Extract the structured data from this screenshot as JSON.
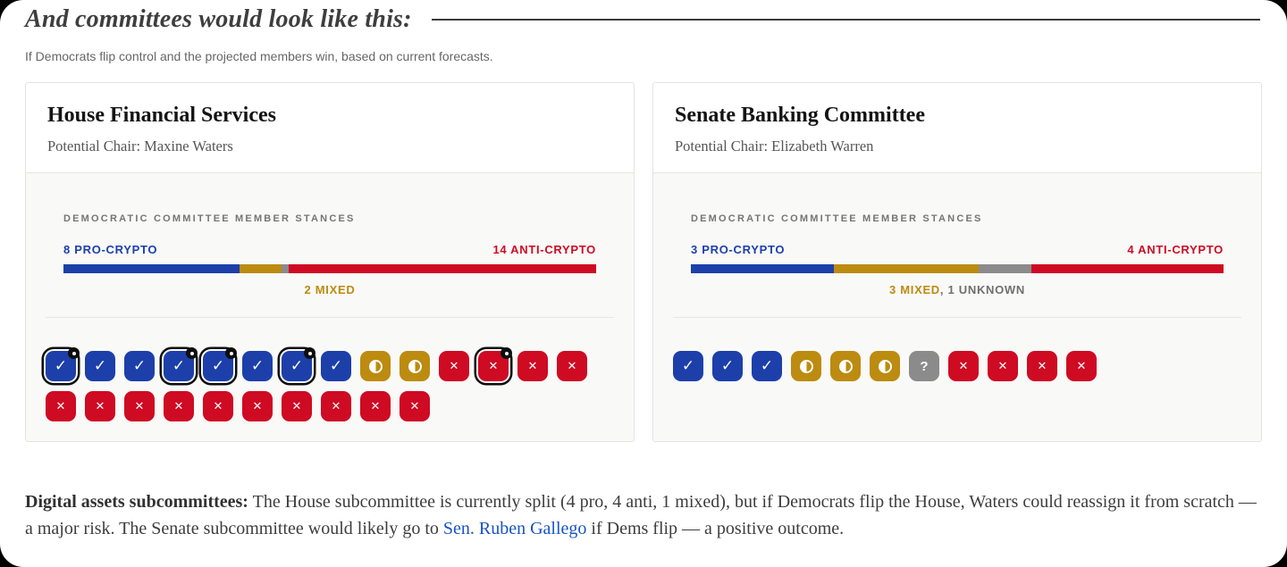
{
  "page": {
    "heading": "And committees would look like this:",
    "subheading": "If Democrats flip control and the projected members win, based on current forecasts."
  },
  "colors": {
    "pro": "#1c3faa",
    "mixed": "#bc8b10",
    "anti": "#cf0a23",
    "unknown": "#8b8b8b",
    "link": "#1753c4"
  },
  "committees": [
    {
      "name": "House Financial Services",
      "chair": "Potential Chair: Maxine Waters",
      "stances_label": "DEMOCRATIC COMMITTEE MEMBER STANCES",
      "pro_label": "8 PRO-CRYPTO",
      "anti_label": "14 ANTI-CRYPTO",
      "mixed_label": "2 MIXED",
      "unknown_label": "",
      "bar_segments": [
        {
          "stance": "pro",
          "pct": 33.0
        },
        {
          "stance": "mixed",
          "pct": 7.9
        },
        {
          "stance": "unknown",
          "pct": 1.4
        },
        {
          "stance": "anti",
          "pct": 57.7
        }
      ],
      "members": [
        {
          "stance": "pro",
          "flagged": true
        },
        {
          "stance": "pro",
          "flagged": false
        },
        {
          "stance": "pro",
          "flagged": false
        },
        {
          "stance": "pro",
          "flagged": true
        },
        {
          "stance": "pro",
          "flagged": true
        },
        {
          "stance": "pro",
          "flagged": false
        },
        {
          "stance": "pro",
          "flagged": true
        },
        {
          "stance": "pro",
          "flagged": false
        },
        {
          "stance": "mixed",
          "flagged": false
        },
        {
          "stance": "mixed",
          "flagged": false
        },
        {
          "stance": "anti",
          "flagged": false
        },
        {
          "stance": "anti",
          "flagged": true
        },
        {
          "stance": "anti",
          "flagged": false
        },
        {
          "stance": "anti",
          "flagged": false
        },
        {
          "stance": "anti",
          "flagged": false
        },
        {
          "stance": "anti",
          "flagged": false
        },
        {
          "stance": "anti",
          "flagged": false
        },
        {
          "stance": "anti",
          "flagged": false
        },
        {
          "stance": "anti",
          "flagged": false
        },
        {
          "stance": "anti",
          "flagged": false
        },
        {
          "stance": "anti",
          "flagged": false
        },
        {
          "stance": "anti",
          "flagged": false
        },
        {
          "stance": "anti",
          "flagged": false
        },
        {
          "stance": "anti",
          "flagged": false
        }
      ]
    },
    {
      "name": "Senate Banking Committee",
      "chair": "Potential Chair: Elizabeth Warren",
      "stances_label": "DEMOCRATIC COMMITTEE MEMBER STANCES",
      "pro_label": "3 PRO-CRYPTO",
      "anti_label": "4 ANTI-CRYPTO",
      "mixed_label": "3 MIXED",
      "unknown_label": ", 1 UNKNOWN",
      "bar_segments": [
        {
          "stance": "pro",
          "pct": 26.9
        },
        {
          "stance": "mixed",
          "pct": 27.2
        },
        {
          "stance": "unknown",
          "pct": 9.8
        },
        {
          "stance": "anti",
          "pct": 36.1
        }
      ],
      "members": [
        {
          "stance": "pro",
          "flagged": false
        },
        {
          "stance": "pro",
          "flagged": false
        },
        {
          "stance": "pro",
          "flagged": false
        },
        {
          "stance": "mixed",
          "flagged": false
        },
        {
          "stance": "mixed",
          "flagged": false
        },
        {
          "stance": "mixed",
          "flagged": false
        },
        {
          "stance": "unknown",
          "flagged": false
        },
        {
          "stance": "anti",
          "flagged": false
        },
        {
          "stance": "anti",
          "flagged": false
        },
        {
          "stance": "anti",
          "flagged": false
        },
        {
          "stance": "anti",
          "flagged": false
        }
      ]
    }
  ],
  "chart_data": [
    {
      "type": "bar",
      "title": "House Financial Services — Democratic Committee Member Stances",
      "categories": [
        "Pro-crypto",
        "Mixed",
        "Unknown",
        "Anti-crypto"
      ],
      "values": [
        8,
        2,
        0,
        14
      ]
    },
    {
      "type": "bar",
      "title": "Senate Banking Committee — Democratic Committee Member Stances",
      "categories": [
        "Pro-crypto",
        "Mixed",
        "Unknown",
        "Anti-crypto"
      ],
      "values": [
        3,
        3,
        1,
        4
      ]
    }
  ],
  "footnote": {
    "bold": "Digital assets subcommittees:",
    "before_link": " The House subcommittee is currently split (4 pro, 4 anti, 1 mixed), but if Democrats flip the House, Waters could reassign it from scratch — a major risk. The Senate subcommittee would likely go to ",
    "link_text": "Sen. Ruben Gallego",
    "after_link": " if Dems flip — a positive outcome."
  }
}
